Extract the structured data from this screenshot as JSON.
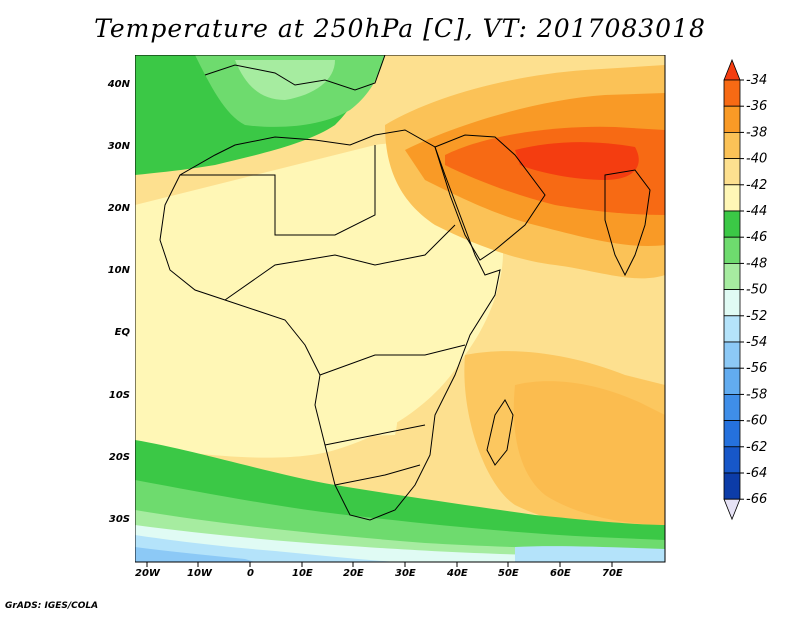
{
  "title": "Temperature at 250hPa [C], VT: 2017083018",
  "credit": "GrADS: IGES/COLA",
  "map": {
    "lon_labels": [
      "20W",
      "10W",
      "0",
      "10E",
      "20E",
      "30E",
      "40E",
      "50E",
      "60E",
      "70E"
    ],
    "lat_labels": [
      "40N",
      "30N",
      "20N",
      "10N",
      "EQ",
      "10S",
      "20S",
      "30S"
    ]
  },
  "colorbar": {
    "labels": [
      "-34",
      "-36",
      "-38",
      "-40",
      "-42",
      "-44",
      "-46",
      "-48",
      "-50",
      "-52",
      "-54",
      "-56",
      "-58",
      "-60",
      "-62",
      "-64",
      "-66"
    ],
    "colors": [
      "#f43d10",
      "#f76a14",
      "#f99a26",
      "#fbc257",
      "#fde08f",
      "#fff7b6",
      "#3bc846",
      "#6edb6e",
      "#a6eca0",
      "#e0fbf4",
      "#b4e3fa",
      "#8cc9f6",
      "#62acf0",
      "#3f8ee8",
      "#2571dd",
      "#1757c8",
      "#0c3ca8",
      "#0b2282"
    ]
  }
}
